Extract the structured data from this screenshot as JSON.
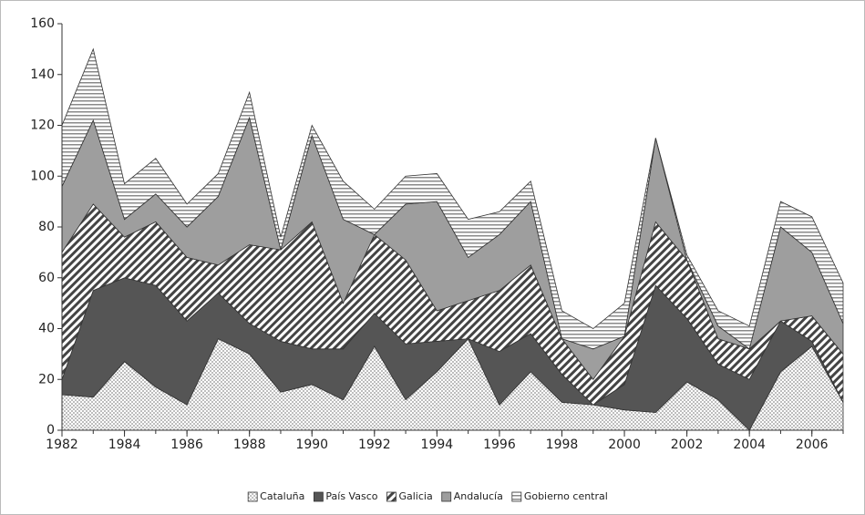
{
  "chart_data": {
    "type": "stacked_area",
    "x": [
      1982,
      1983,
      1984,
      1985,
      1986,
      1987,
      1988,
      1989,
      1990,
      1991,
      1992,
      1993,
      1994,
      1995,
      1996,
      1997,
      1998,
      1999,
      2000,
      2001,
      2002,
      2003,
      2004,
      2005,
      2006,
      2007
    ],
    "series": [
      {
        "name": "Cataluña",
        "color": "#bdbdbd",
        "values": [
          14,
          13,
          27,
          17,
          10,
          36,
          30,
          15,
          18,
          12,
          33,
          12,
          23,
          36,
          10,
          23,
          11,
          10,
          8,
          7,
          19,
          12,
          0,
          23,
          33,
          11
        ]
      },
      {
        "name": "País Vasco",
        "color": "#555555",
        "values": [
          6,
          42,
          33,
          40,
          33,
          18,
          12,
          20,
          14,
          20,
          13,
          22,
          12,
          0,
          21,
          15,
          11,
          0,
          10,
          50,
          25,
          14,
          20,
          20,
          2,
          0
        ]
      },
      {
        "name": "Galicia",
        "color": "#444444",
        "values": [
          50,
          34,
          16,
          25,
          25,
          11,
          31,
          36,
          50,
          18,
          31,
          33,
          12,
          15,
          24,
          27,
          14,
          10,
          19,
          25,
          23,
          10,
          12,
          0,
          10,
          19
        ]
      },
      {
        "name": "Andalucía",
        "color": "#9e9e9e",
        "values": [
          26,
          33,
          7,
          11,
          12,
          27,
          50,
          0,
          34,
          33,
          0,
          22,
          43,
          17,
          22,
          25,
          0,
          12,
          0,
          33,
          0,
          5,
          0,
          37,
          25,
          12
        ]
      },
      {
        "name": "Gobierno central",
        "color": "#8a8a8a",
        "values": [
          24,
          28,
          14,
          14,
          9,
          9,
          10,
          5,
          4,
          15,
          10,
          11,
          11,
          15,
          9,
          8,
          11,
          8,
          13,
          0,
          2,
          6,
          9,
          10,
          14,
          16
        ]
      }
    ],
    "xlim": [
      1982,
      2007
    ],
    "xticks": [
      1982,
      1984,
      1986,
      1988,
      1990,
      1992,
      1994,
      1996,
      1998,
      2000,
      2002,
      2004,
      2006
    ],
    "ylim": [
      0,
      160
    ],
    "yticks": [
      0,
      20,
      40,
      60,
      80,
      100,
      120,
      140,
      160
    ]
  }
}
